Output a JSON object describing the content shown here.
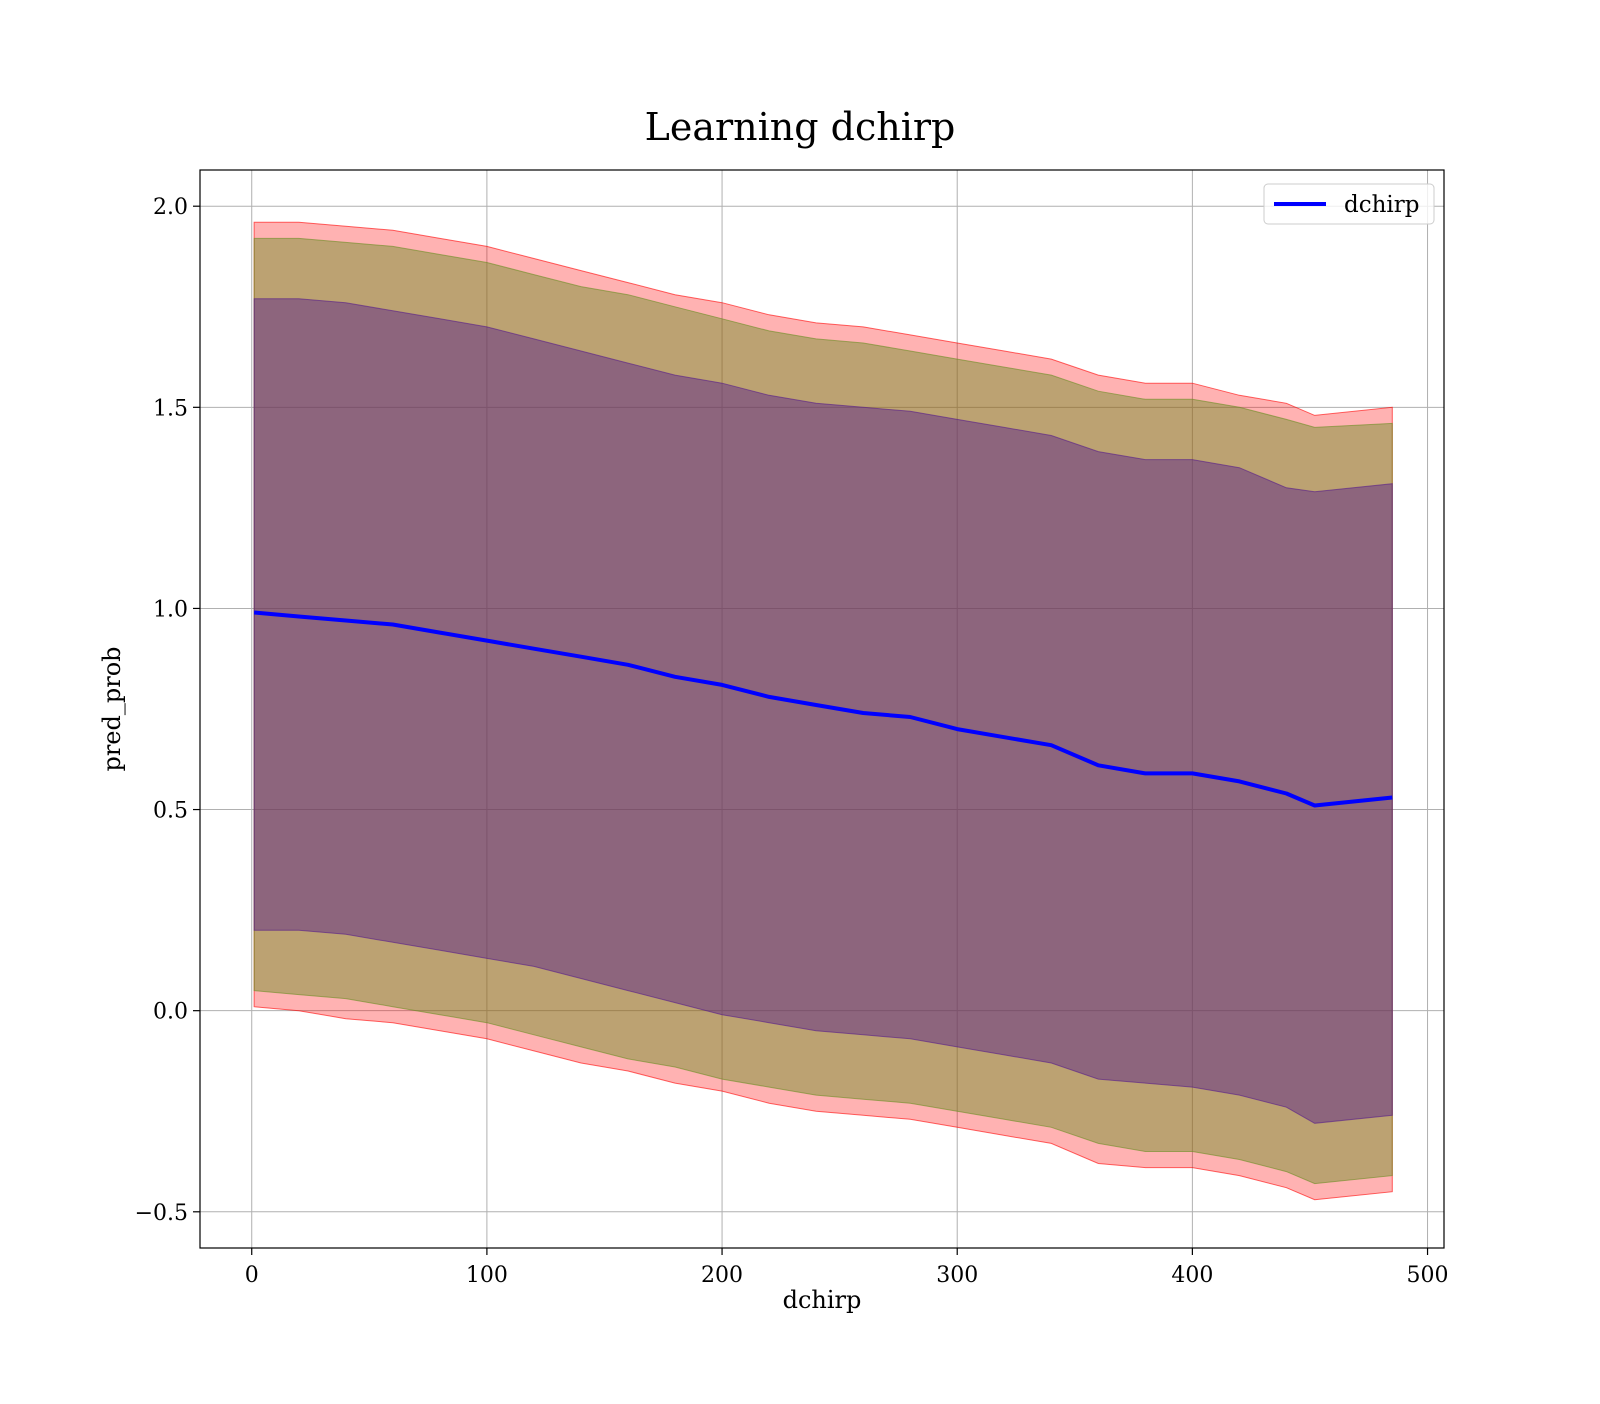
{
  "chart_data": {
    "type": "line",
    "title": "Learning dchirp",
    "xlabel": "dchirp",
    "ylabel": "pred_prob",
    "xlim": [
      -22,
      507
    ],
    "ylim": [
      -0.59,
      2.09
    ],
    "xticks": [
      0,
      100,
      200,
      300,
      400,
      500
    ],
    "yticks": [
      -0.5,
      0.0,
      0.5,
      1.0,
      1.5,
      2.0
    ],
    "xtick_labels": [
      "0",
      "100",
      "200",
      "300",
      "400",
      "500"
    ],
    "ytick_labels": [
      "−0.5",
      "0.0",
      "0.5",
      "1.0",
      "1.5",
      "2.0"
    ],
    "grid": true,
    "legend_position": "top-right",
    "series": [
      {
        "name": "dchirp",
        "color": "#0000ff",
        "x": [
          1,
          20,
          40,
          60,
          80,
          100,
          120,
          140,
          160,
          180,
          200,
          220,
          240,
          260,
          280,
          300,
          320,
          340,
          360,
          380,
          400,
          420,
          440,
          452,
          485
        ],
        "values": [
          0.99,
          0.98,
          0.97,
          0.96,
          0.94,
          0.92,
          0.9,
          0.88,
          0.86,
          0.83,
          0.81,
          0.78,
          0.76,
          0.74,
          0.73,
          0.7,
          0.68,
          0.66,
          0.61,
          0.59,
          0.59,
          0.57,
          0.54,
          0.51,
          0.53
        ]
      }
    ],
    "bands": [
      {
        "color": "#ff0000",
        "opacity": 0.3,
        "x": [
          1,
          20,
          40,
          60,
          80,
          100,
          120,
          140,
          160,
          180,
          200,
          220,
          240,
          260,
          280,
          300,
          320,
          340,
          360,
          380,
          400,
          420,
          440,
          452,
          485
        ],
        "upper": [
          1.96,
          1.96,
          1.95,
          1.94,
          1.92,
          1.9,
          1.87,
          1.84,
          1.81,
          1.78,
          1.76,
          1.73,
          1.71,
          1.7,
          1.68,
          1.66,
          1.64,
          1.62,
          1.58,
          1.56,
          1.56,
          1.53,
          1.51,
          1.48,
          1.5
        ],
        "lower": [
          0.01,
          0.0,
          -0.02,
          -0.03,
          -0.05,
          -0.07,
          -0.1,
          -0.13,
          -0.15,
          -0.18,
          -0.2,
          -0.23,
          -0.25,
          -0.26,
          -0.27,
          -0.29,
          -0.31,
          -0.33,
          -0.38,
          -0.39,
          -0.39,
          -0.41,
          -0.44,
          -0.47,
          -0.45
        ]
      },
      {
        "color": "#6b8e23",
        "opacity": 0.45,
        "x": [
          1,
          20,
          40,
          60,
          80,
          100,
          120,
          140,
          160,
          180,
          200,
          220,
          240,
          260,
          280,
          300,
          320,
          340,
          360,
          380,
          400,
          420,
          440,
          452,
          485
        ],
        "upper": [
          1.92,
          1.92,
          1.91,
          1.9,
          1.88,
          1.86,
          1.83,
          1.8,
          1.78,
          1.75,
          1.72,
          1.69,
          1.67,
          1.66,
          1.64,
          1.62,
          1.6,
          1.58,
          1.54,
          1.52,
          1.52,
          1.5,
          1.47,
          1.45,
          1.46
        ],
        "lower": [
          0.05,
          0.04,
          0.03,
          0.01,
          -0.01,
          -0.03,
          -0.06,
          -0.09,
          -0.12,
          -0.14,
          -0.17,
          -0.19,
          -0.21,
          -0.22,
          -0.23,
          -0.25,
          -0.27,
          -0.29,
          -0.33,
          -0.35,
          -0.35,
          -0.37,
          -0.4,
          -0.43,
          -0.41
        ]
      },
      {
        "color": "#551a8b",
        "opacity": 0.45,
        "x": [
          1,
          20,
          40,
          60,
          80,
          100,
          120,
          140,
          160,
          180,
          200,
          220,
          240,
          260,
          280,
          300,
          320,
          340,
          360,
          380,
          400,
          420,
          440,
          452,
          485
        ],
        "upper": [
          1.77,
          1.77,
          1.76,
          1.74,
          1.72,
          1.7,
          1.67,
          1.64,
          1.61,
          1.58,
          1.56,
          1.53,
          1.51,
          1.5,
          1.49,
          1.47,
          1.45,
          1.43,
          1.39,
          1.37,
          1.37,
          1.35,
          1.3,
          1.29,
          1.31
        ],
        "lower": [
          0.2,
          0.2,
          0.19,
          0.17,
          0.15,
          0.13,
          0.11,
          0.08,
          0.05,
          0.02,
          -0.01,
          -0.03,
          -0.05,
          -0.06,
          -0.07,
          -0.09,
          -0.11,
          -0.13,
          -0.17,
          -0.18,
          -0.19,
          -0.21,
          -0.24,
          -0.28,
          -0.26
        ]
      }
    ]
  }
}
